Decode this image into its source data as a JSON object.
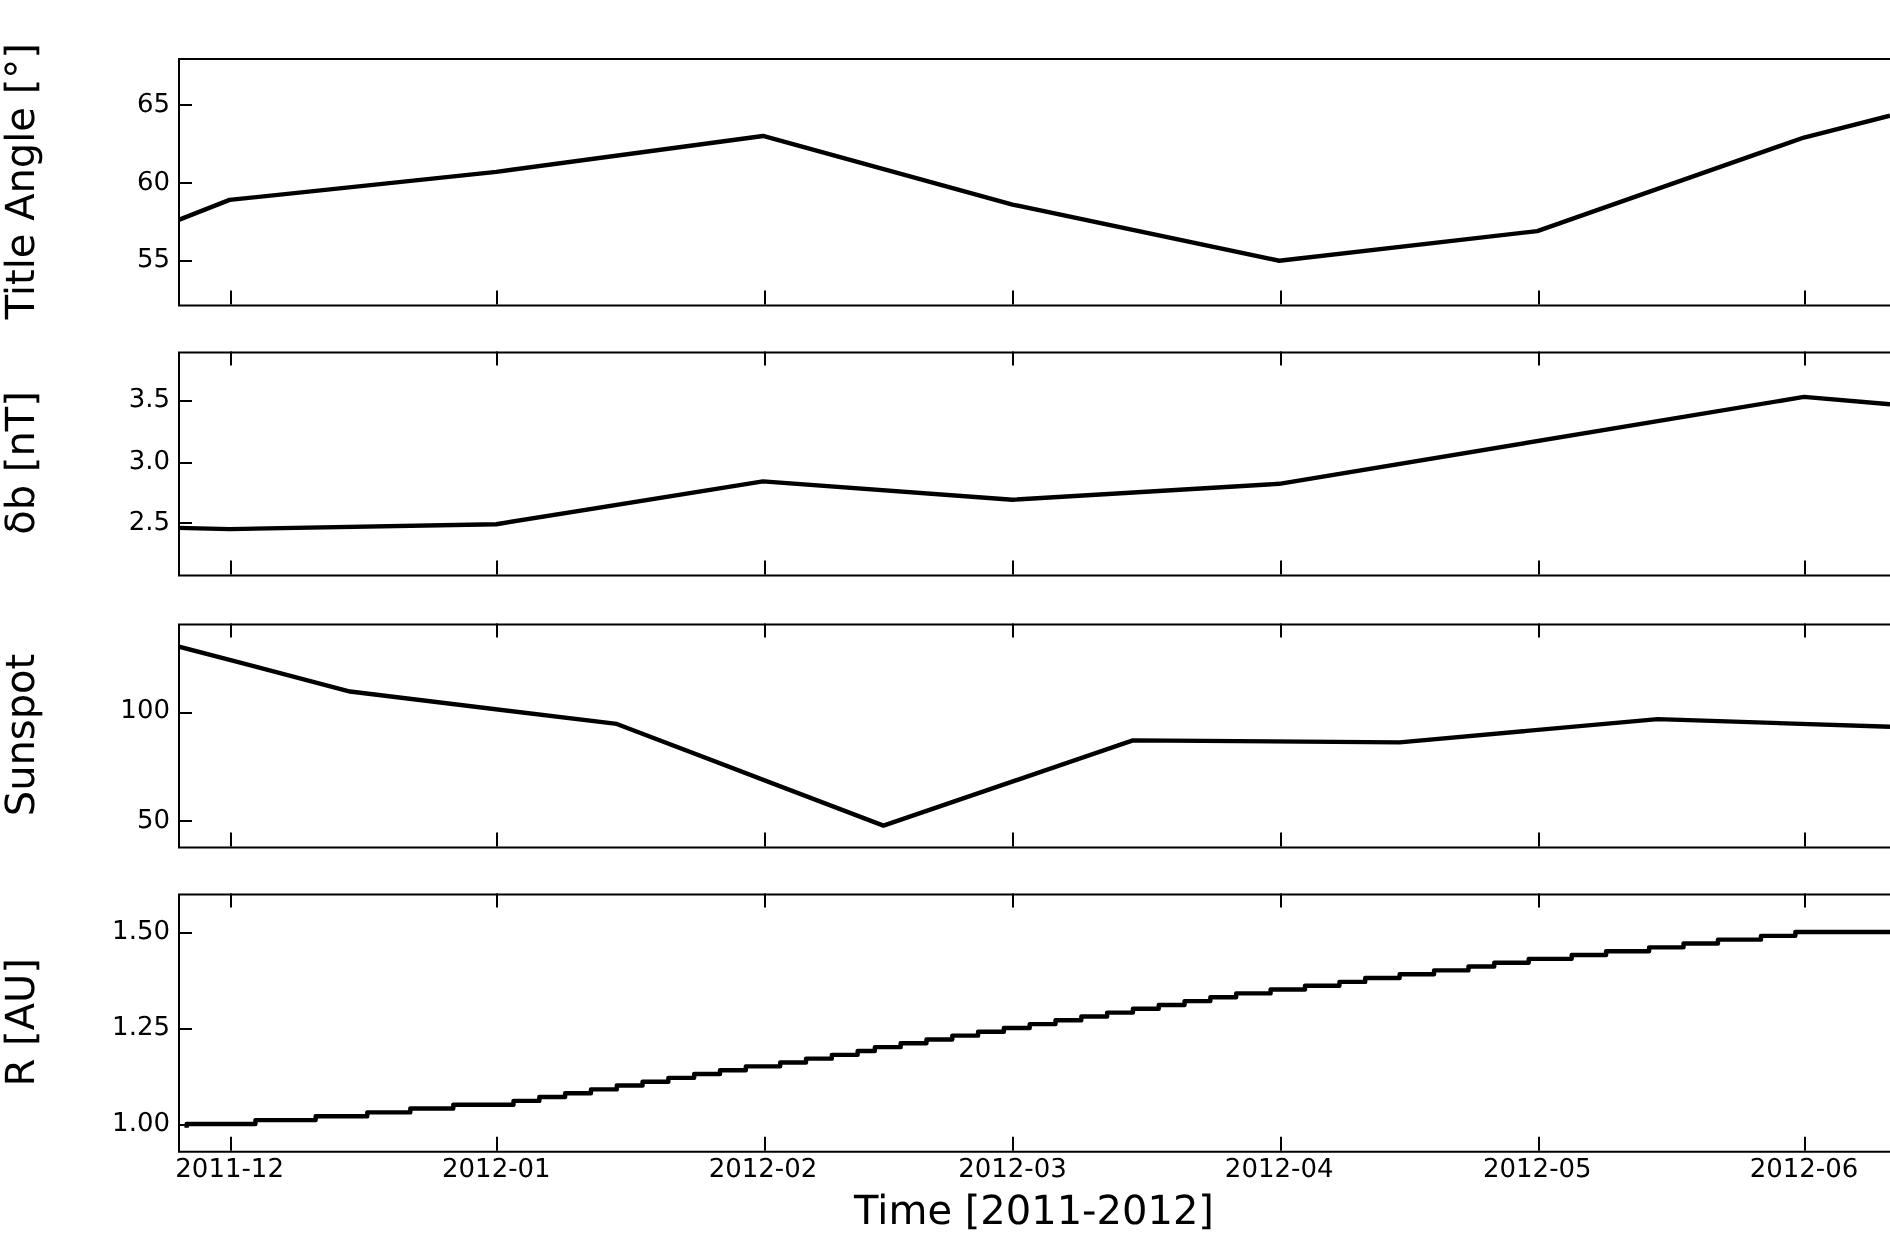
{
  "chart_data": [
    {
      "type": "line",
      "ylabel": "Title Angle [°]",
      "color": "#000000",
      "tick_labels": "y",
      "x": [
        "2011-11-25",
        "2011-12-01",
        "2012-01-01",
        "2012-02-01",
        "2012-03-01",
        "2012-04-01",
        "2012-05-01",
        "2012-06-01",
        "2012-06-11"
      ],
      "values": [
        57.6,
        58.9,
        60.7,
        63.0,
        58.6,
        55.0,
        56.9,
        62.9,
        64.3
      ],
      "xlim": [
        "2011-11-25",
        "2012-06-11"
      ],
      "xticks": [
        "2011-12",
        "2012-01",
        "2012-02",
        "2012-03",
        "2012-04",
        "2012-05",
        "2012-06"
      ],
      "ylim": [
        52.2,
        68
      ],
      "yticks": [
        55,
        60,
        65
      ]
    },
    {
      "type": "line",
      "ylabel": "δb [nT]",
      "color": "#000000",
      "tick_labels": "y",
      "x": [
        "2011-11-25",
        "2011-12-01",
        "2012-01-01",
        "2012-02-01",
        "2012-03-01",
        "2012-04-01",
        "2012-06-01",
        "2012-06-11"
      ],
      "values": [
        2.46,
        2.45,
        2.49,
        2.84,
        2.69,
        2.82,
        3.53,
        3.47
      ],
      "xlim": [
        "2011-11-25",
        "2012-06-11"
      ],
      "xticks": [
        "2011-12",
        "2012-01",
        "2012-02",
        "2012-03",
        "2012-04",
        "2012-05",
        "2012-06"
      ],
      "ylim": [
        2.08,
        3.9
      ],
      "yticks": [
        {
          "value": 2.5,
          "label": "2.5"
        },
        {
          "value": 3,
          "label": "3.0"
        },
        {
          "value": 3.5,
          "label": "3.5"
        }
      ]
    },
    {
      "type": "line",
      "ylabel": "Sunspot",
      "color": "#000000",
      "tick_labels": "y",
      "x": [
        "2011-11-25",
        "2011-12-15",
        "2012-01-15",
        "2012-02-15",
        "2012-03-15",
        "2012-04-15",
        "2012-05-15",
        "2012-06-11"
      ],
      "values": [
        129.6,
        109,
        94.2,
        47.8,
        86.7,
        85.8,
        96.4,
        92.9
      ],
      "xlim": [
        "2011-11-25",
        "2012-06-11"
      ],
      "xticks": [
        "2011-12",
        "2012-01",
        "2012-02",
        "2012-03",
        "2012-04",
        "2012-05",
        "2012-06"
      ],
      "ylim": [
        38.3,
        140
      ],
      "yticks": [
        50,
        100
      ]
    },
    {
      "type": "step",
      "ylabel": "R [AU]",
      "xlabel": "Time [2011-2012]",
      "color": "#000000",
      "x": [
        "2011-11-26",
        "2011-12-04",
        "2011-12-11",
        "2011-12-17",
        "2011-12-22",
        "2011-12-27",
        "2012-01-03",
        "2012-01-06",
        "2012-01-09",
        "2012-01-12",
        "2012-01-15",
        "2012-01-18",
        "2012-01-21",
        "2012-01-24",
        "2012-01-27",
        "2012-01-30",
        "2012-02-03",
        "2012-02-06",
        "2012-02-09",
        "2012-02-12",
        "2012-02-14",
        "2012-02-17",
        "2012-02-20",
        "2012-02-23",
        "2012-02-26",
        "2012-02-29",
        "2012-03-03",
        "2012-03-06",
        "2012-03-09",
        "2012-03-12",
        "2012-03-15",
        "2012-03-18",
        "2012-03-21",
        "2012-03-24",
        "2012-03-27",
        "2012-03-31",
        "2012-04-04",
        "2012-04-08",
        "2012-04-11",
        "2012-04-15",
        "2012-04-19",
        "2012-04-23",
        "2012-04-26",
        "2012-04-30",
        "2012-05-05",
        "2012-05-09",
        "2012-05-14",
        "2012-05-18",
        "2012-05-22",
        "2012-05-27",
        "2012-05-31",
        "2012-06-06",
        "2012-06-11"
      ],
      "values": [
        0.99,
        1.0,
        1.01,
        1.02,
        1.03,
        1.04,
        1.05,
        1.06,
        1.07,
        1.08,
        1.09,
        1.1,
        1.11,
        1.12,
        1.13,
        1.14,
        1.15,
        1.16,
        1.17,
        1.18,
        1.19,
        1.2,
        1.21,
        1.22,
        1.23,
        1.24,
        1.25,
        1.26,
        1.27,
        1.28,
        1.29,
        1.3,
        1.31,
        1.32,
        1.33,
        1.34,
        1.35,
        1.36,
        1.37,
        1.38,
        1.39,
        1.4,
        1.41,
        1.42,
        1.43,
        1.44,
        1.45,
        1.46,
        1.47,
        1.48,
        1.49,
        1.5,
        1.5
      ],
      "xlim": [
        "2011-11-25",
        "2012-06-11"
      ],
      "xticks": [
        "2011-12",
        "2012-01",
        "2012-02",
        "2012-03",
        "2012-04",
        "2012-05",
        "2012-06"
      ],
      "ylim": [
        0.93,
        1.6
      ],
      "yticks": [
        {
          "value": 1,
          "label": "1.00"
        },
        1.25,
        {
          "value": 1.5,
          "label": "1.50"
        }
      ]
    }
  ]
}
